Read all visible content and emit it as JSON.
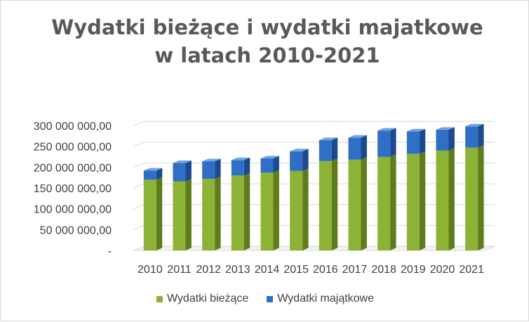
{
  "colors": {
    "current": "#8db336",
    "current_dark": "#5e7c1c",
    "current_light": "#b6d66a",
    "capital": "#2f6fc6",
    "capital_dark": "#1c4a8e",
    "capital_light": "#6fa2e3",
    "grid": "#d9d9d9"
  },
  "chart_data": {
    "type": "bar",
    "stacked": true,
    "three_d": true,
    "title": "Wydatki bieżące i wydatki majatkowe w latach 2010-2021",
    "xlabel": "",
    "ylabel": "",
    "categories": [
      "2010",
      "2011",
      "2012",
      "2013",
      "2014",
      "2015",
      "2016",
      "2017",
      "2018",
      "2019",
      "2020",
      "2021"
    ],
    "series": [
      {
        "name": "Wydatki bieżące",
        "values": [
          170000000,
          166000000,
          172000000,
          180000000,
          187000000,
          191000000,
          215000000,
          218000000,
          225000000,
          232000000,
          240000000,
          247000000
        ]
      },
      {
        "name": "Wydatki majątkowe",
        "values": [
          22000000,
          44000000,
          42000000,
          37000000,
          34000000,
          47000000,
          50000000,
          53000000,
          63000000,
          54000000,
          50000000,
          51000000
        ]
      }
    ],
    "ylim": [
      0,
      300000000
    ],
    "yticks": [
      0,
      50000000,
      100000000,
      150000000,
      200000000,
      250000000,
      300000000
    ],
    "ytick_labels": [
      "-",
      "50 000 000,00",
      "100 000 000,00",
      "150 000 000,00",
      "200 000 000,00",
      "250 000 000,00",
      "300 000 000,00"
    ],
    "grid": true,
    "legend_position": "bottom"
  }
}
